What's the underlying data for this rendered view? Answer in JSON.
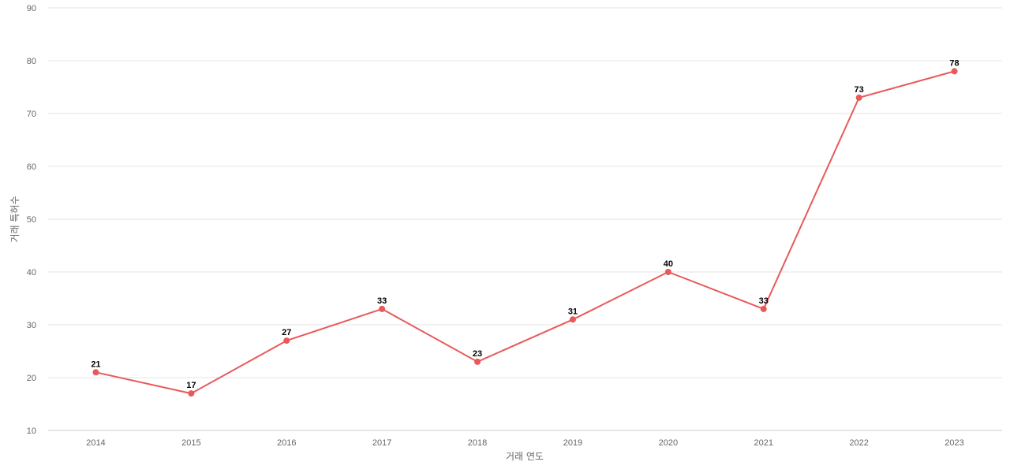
{
  "chart_data": {
    "type": "line",
    "title": "",
    "xlabel": "거래 연도",
    "ylabel": "거래 특허수",
    "x": [
      "2014",
      "2015",
      "2016",
      "2017",
      "2018",
      "2019",
      "2020",
      "2021",
      "2022",
      "2023"
    ],
    "series": [
      {
        "values": [
          21,
          17,
          27,
          33,
          23,
          31,
          40,
          33,
          73,
          78
        ],
        "color": "#e85a5a"
      }
    ],
    "ylim": [
      10,
      90
    ],
    "yticks": [
      10,
      20,
      30,
      40,
      50,
      60,
      70,
      80,
      90
    ],
    "grid": true,
    "legend": "none",
    "data_labels": true,
    "markers": true
  }
}
